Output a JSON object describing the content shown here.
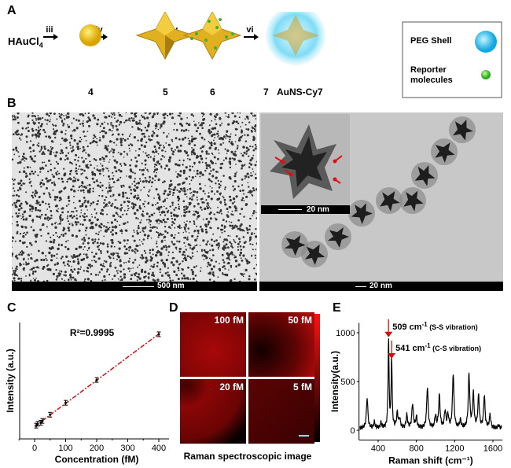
{
  "panel_labels": {
    "a": "A",
    "b": "B",
    "c": "C",
    "d": "D",
    "e": "E"
  },
  "scheme": {
    "start": "HAuCl",
    "start_sub": "4",
    "steps": [
      "iii",
      "iv",
      "v",
      "vi"
    ],
    "compounds": [
      "4",
      "5",
      "6",
      "7"
    ],
    "final_name": "AuNS-Cy7",
    "legend": {
      "peg": "PEG Shell",
      "reporter": "Reporter molecules"
    },
    "colors": {
      "gold": "#e8b828",
      "peg": "#40c8f0",
      "reporter": "#5cd040"
    }
  },
  "tem": {
    "left_scale": "500 nm",
    "right_scale": "20 nm",
    "inset_scale": "20 nm"
  },
  "raman_image": {
    "panels": [
      "100 fM",
      "50 fM",
      "20 fM",
      "5 fM"
    ],
    "caption": "Raman spectroscopic image",
    "colormap": [
      "#000000",
      "#ff1010"
    ]
  },
  "chart_data": [
    {
      "type": "scatter",
      "panel": "C",
      "annotation": "R²=0.9995",
      "xlabel": "Concentration (fM)",
      "ylabel": "Intensity (a.u.)",
      "xlim": [
        -50,
        450
      ],
      "xticks": [
        "0",
        "100",
        "200",
        "300",
        "400"
      ],
      "x": [
        5,
        10,
        20,
        25,
        50,
        100,
        200,
        400
      ],
      "y": [
        0.04,
        0.06,
        0.07,
        0.09,
        0.155,
        0.28,
        0.52,
        1.0
      ],
      "fit": "linear",
      "fit_color": "#cc1111",
      "grid": false
    },
    {
      "type": "line",
      "panel": "E",
      "xlabel": "Raman shift (cm⁻¹)",
      "ylabel": "Intensity(a.u.)",
      "xlim": [
        200,
        1700
      ],
      "ylim": [
        -100,
        1100
      ],
      "xticks": [
        "400",
        "800",
        "1200",
        "1600"
      ],
      "yticks": [
        "0",
        "500",
        "1000"
      ],
      "peaks": [
        [
          285,
          310
        ],
        [
          360,
          60
        ],
        [
          430,
          50
        ],
        [
          509,
          920
        ],
        [
          541,
          720
        ],
        [
          600,
          150
        ],
        [
          625,
          90
        ],
        [
          700,
          130
        ],
        [
          760,
          250
        ],
        [
          800,
          110
        ],
        [
          915,
          420
        ],
        [
          1000,
          120
        ],
        [
          1040,
          330
        ],
        [
          1100,
          170
        ],
        [
          1130,
          130
        ],
        [
          1185,
          560
        ],
        [
          1260,
          80
        ],
        [
          1350,
          550
        ],
        [
          1395,
          350
        ],
        [
          1450,
          330
        ],
        [
          1510,
          330
        ],
        [
          1570,
          130
        ],
        [
          1660,
          30
        ]
      ],
      "annotations": [
        {
          "x": 509,
          "main": "509 cm",
          "sup": "-1",
          "note": "(S-S vibration)"
        },
        {
          "x": 541,
          "main": "541 cm",
          "sup": "-1",
          "note": "(C-S vibration)"
        }
      ],
      "grid": false
    }
  ]
}
